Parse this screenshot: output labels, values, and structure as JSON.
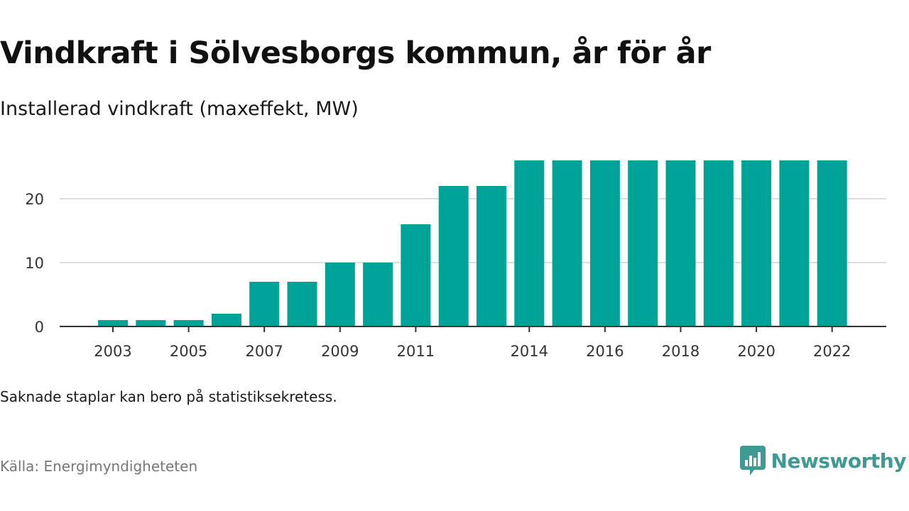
{
  "title": "Vindkraft i Sölvesborgs kommun, år för år",
  "subtitle": "Installerad vindkraft (maxeffekt, MW)",
  "note": "Saknade staplar kan bero på statistiksekretess.",
  "source": "Källa: Energimyndigheteten",
  "brand": {
    "name": "Newsworthy",
    "icon": "newsworthy-logo-icon",
    "color": "#3e9a92"
  },
  "colors": {
    "bar": "#00a397",
    "grid": "#dddddd",
    "axis": "#333333"
  },
  "chart_data": {
    "type": "bar",
    "categories": [
      "2003",
      "2004",
      "2005",
      "2006",
      "2007",
      "2008",
      "2009",
      "2010",
      "2011",
      "2012",
      "2013",
      "2014",
      "2015",
      "2016",
      "2017",
      "2018",
      "2019",
      "2020",
      "2021",
      "2022"
    ],
    "values": [
      1,
      1,
      1,
      2,
      7,
      7,
      10,
      10,
      16,
      22,
      22,
      26,
      26,
      26,
      26,
      26,
      26,
      26,
      26,
      26
    ],
    "x_tick_labels": [
      "2003",
      "2005",
      "2007",
      "2009",
      "2011",
      "2014",
      "2016",
      "2018",
      "2020",
      "2022"
    ],
    "y_ticks": [
      0,
      10,
      20
    ],
    "ylim": [
      0,
      28
    ],
    "grid": true
  }
}
